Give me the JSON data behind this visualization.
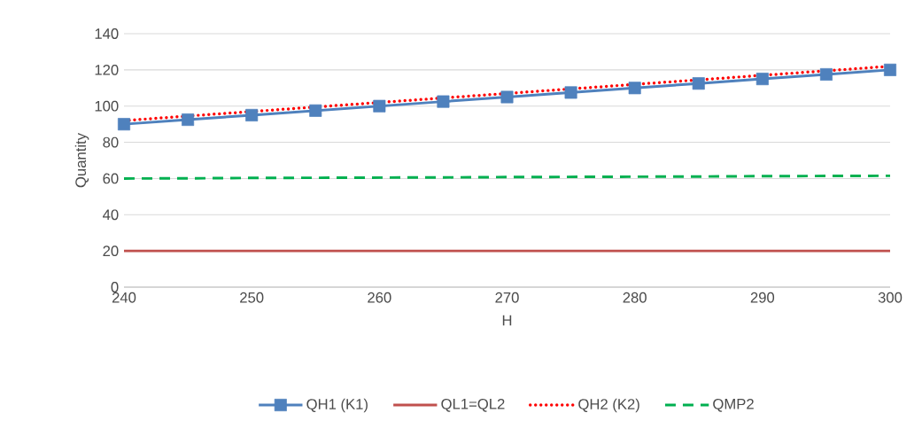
{
  "chart_data": {
    "type": "line",
    "xlabel": "H",
    "ylabel": "Quantity",
    "x": [
      240,
      245,
      250,
      255,
      260,
      265,
      270,
      275,
      280,
      285,
      290,
      295,
      300
    ],
    "series": [
      {
        "name": "QH1 (K1)",
        "color": "#4f81bd",
        "marker": "square",
        "line_style": "solid",
        "values": [
          90,
          92.5,
          95,
          97.5,
          100,
          102.5,
          105,
          107.5,
          110,
          112.5,
          115,
          117.5,
          120
        ]
      },
      {
        "name": "QL1=QL2",
        "color": "#c0504d",
        "marker": "none",
        "line_style": "solid",
        "values": [
          20,
          20,
          20,
          20,
          20,
          20,
          20,
          20,
          20,
          20,
          20,
          20,
          20
        ]
      },
      {
        "name": "QH2 (K2)",
        "color": "#ff0000",
        "marker": "none",
        "line_style": "dotted",
        "values": [
          92,
          94.5,
          97,
          99.5,
          102,
          104.5,
          107,
          109.5,
          112,
          114.5,
          117,
          119.5,
          122
        ]
      },
      {
        "name": "QMP2",
        "color": "#00b050",
        "marker": "none",
        "line_style": "dashed",
        "values": [
          60,
          60.1,
          60.3,
          60.4,
          60.5,
          60.6,
          60.8,
          60.9,
          61,
          61.1,
          61.3,
          61.4,
          61.5
        ]
      }
    ],
    "xlim": [
      240,
      300
    ],
    "ylim": [
      0,
      140
    ],
    "xticks": [
      240,
      250,
      260,
      270,
      280,
      290,
      300
    ],
    "yticks": [
      0,
      20,
      40,
      60,
      80,
      100,
      120,
      140
    ],
    "grid": "y",
    "legend": "bottom"
  }
}
